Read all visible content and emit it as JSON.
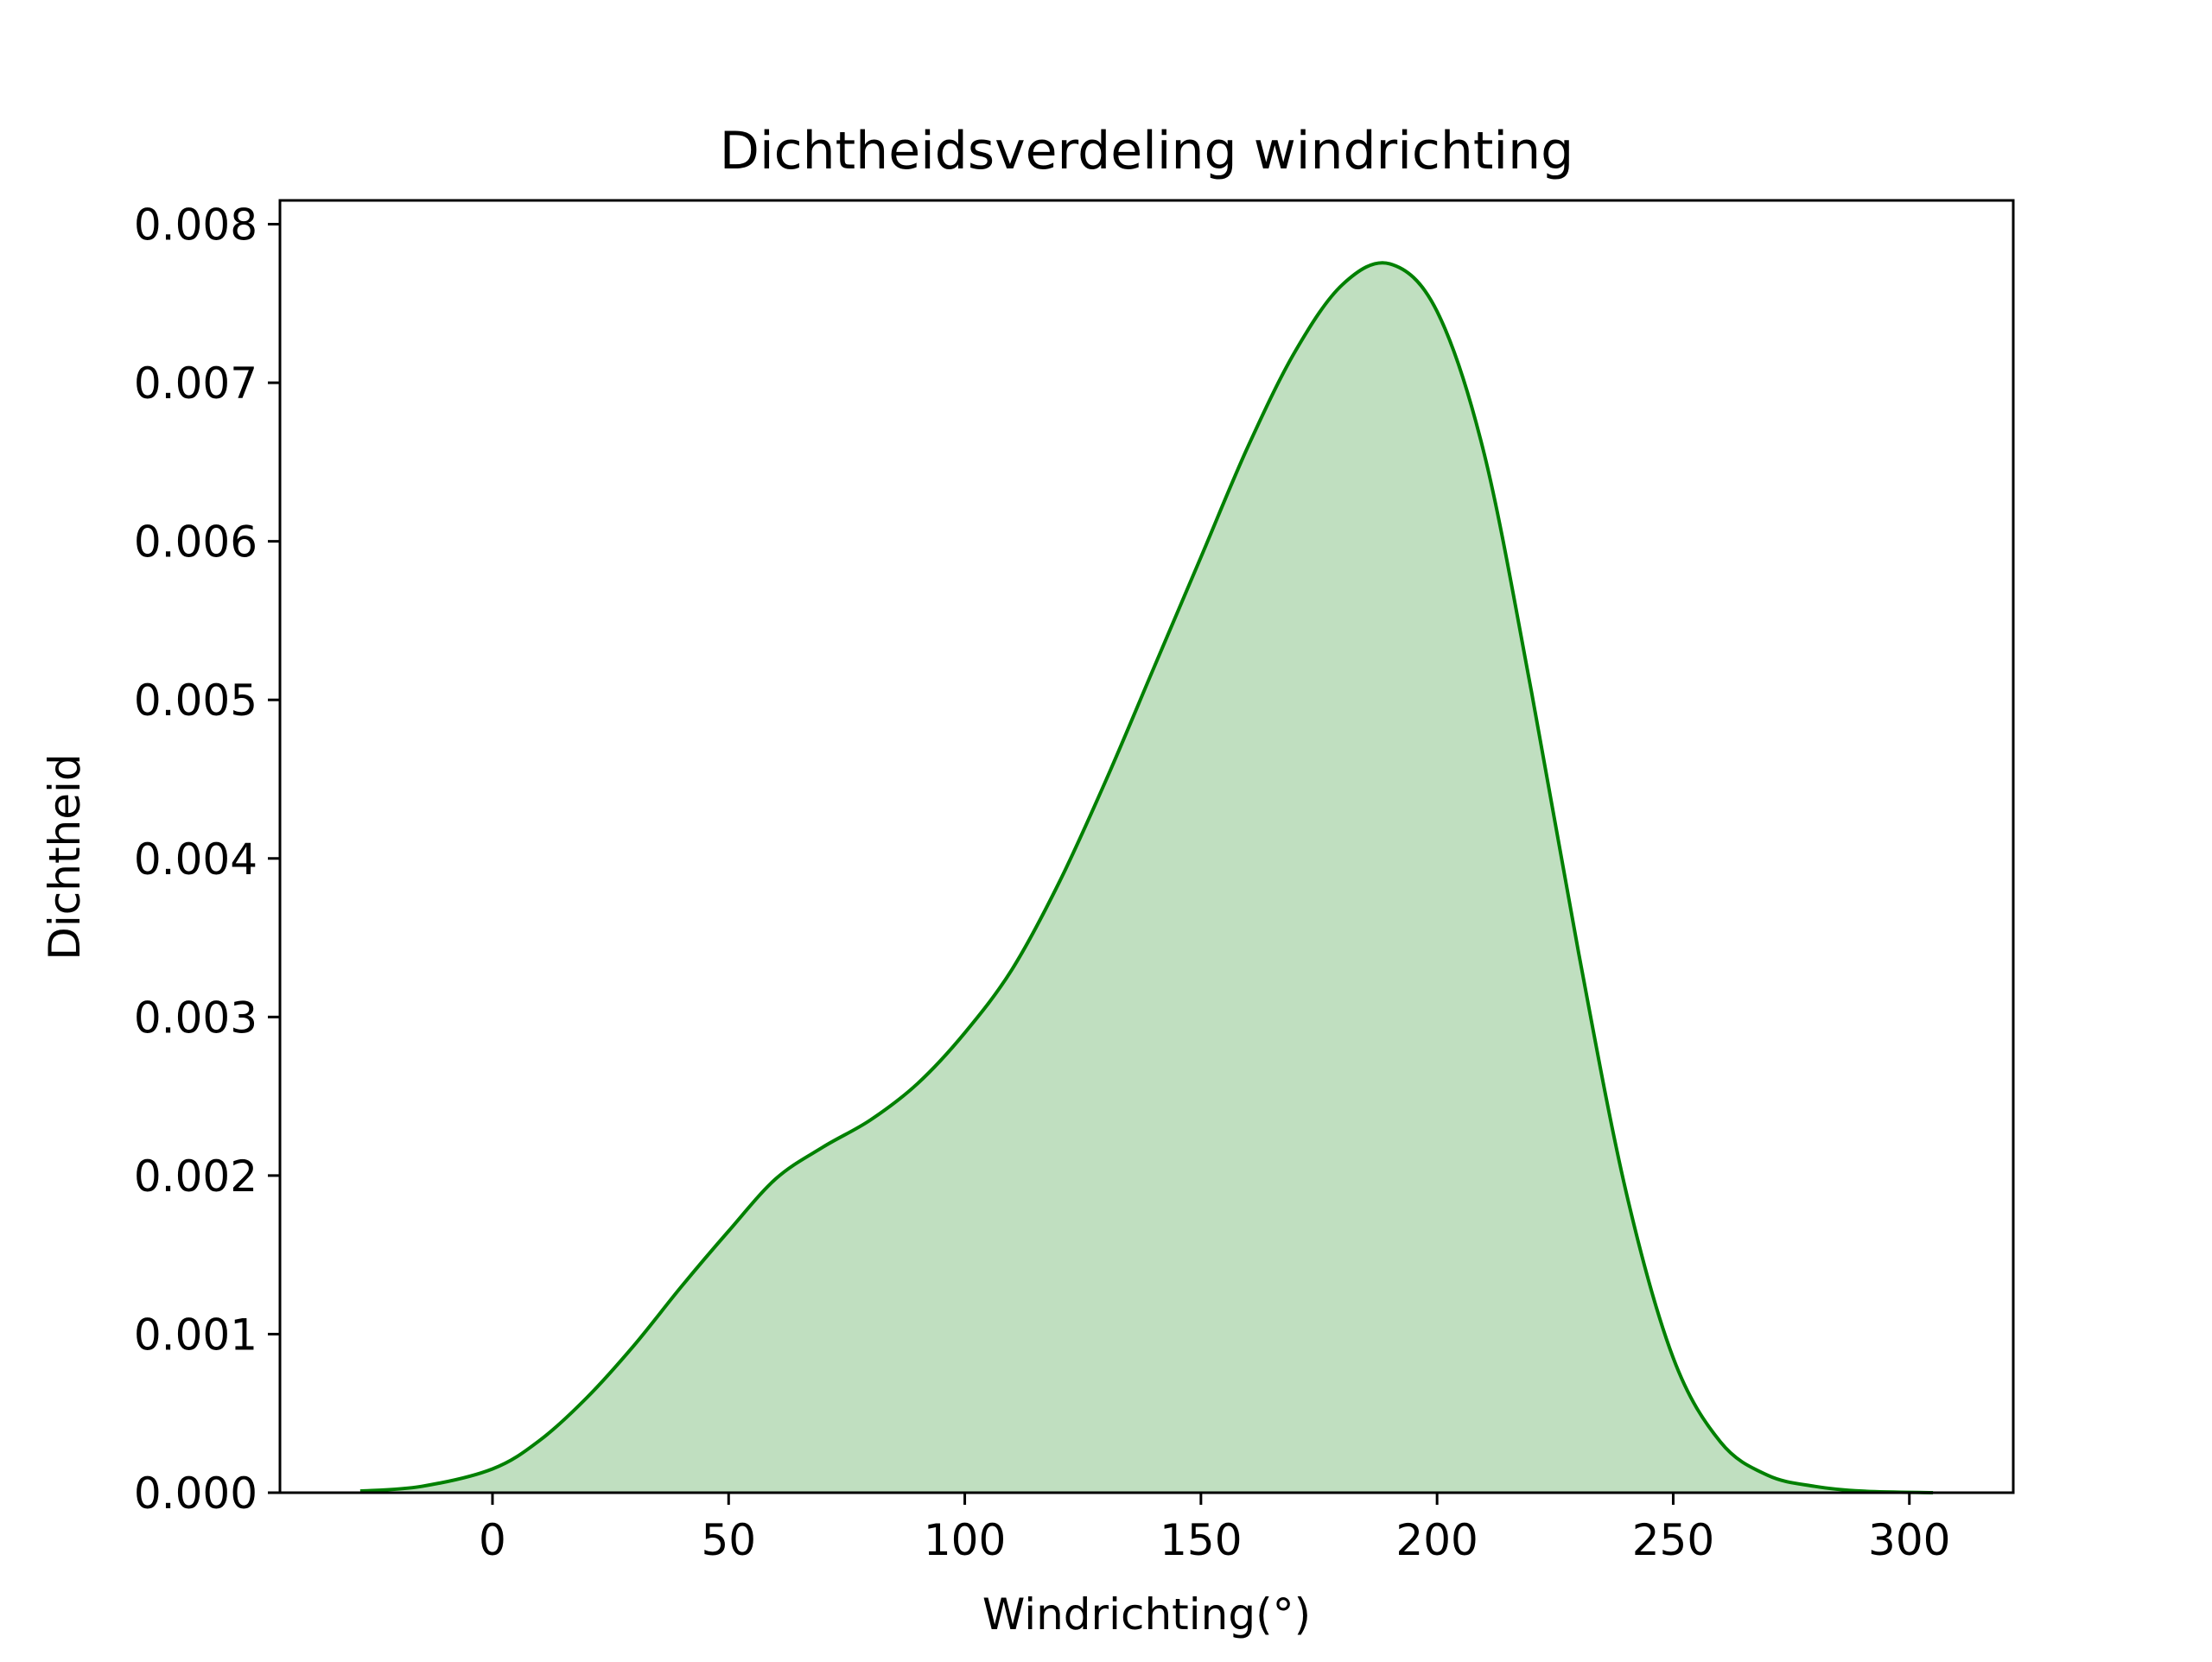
{
  "chart_data": {
    "type": "area",
    "title": "Dichtheidsverdeling windrichting",
    "xlabel": "Windrichting(°)",
    "ylabel": "Dichtheid",
    "xlim": [
      -45,
      322
    ],
    "ylim": [
      0,
      0.00815
    ],
    "xticks": [
      0,
      50,
      100,
      150,
      200,
      250,
      300
    ],
    "xtick_labels": [
      "0",
      "50",
      "100",
      "150",
      "200",
      "250",
      "300"
    ],
    "yticks": [
      0.0,
      0.001,
      0.002,
      0.003,
      0.004,
      0.005,
      0.006,
      0.007,
      0.008
    ],
    "ytick_labels": [
      "0.000",
      "0.001",
      "0.002",
      "0.003",
      "0.004",
      "0.005",
      "0.006",
      "0.007",
      "0.008"
    ],
    "grid": false,
    "legend": "none",
    "series": [
      {
        "line_color": "#008000",
        "fill_color": "#c0dfc0",
        "x": [
          -28,
          -15,
          0,
          10,
          20,
          30,
          40,
          50,
          60,
          70,
          80,
          90,
          100,
          110,
          120,
          130,
          140,
          150,
          160,
          170,
          180,
          190,
          200,
          210,
          220,
          230,
          240,
          250,
          260,
          270,
          280,
          290,
          305
        ],
        "y": [
          1e-05,
          4e-05,
          0.00015,
          0.00033,
          0.0006,
          0.00093,
          0.0013,
          0.00165,
          0.00198,
          0.00218,
          0.00235,
          0.00258,
          0.0029,
          0.0033,
          0.00385,
          0.0045,
          0.0052,
          0.0059,
          0.0066,
          0.0072,
          0.00762,
          0.00775,
          0.00745,
          0.00655,
          0.00505,
          0.0034,
          0.0019,
          0.00085,
          0.00032,
          0.00011,
          4e-05,
          1e-05,
          0.0
        ]
      }
    ]
  }
}
